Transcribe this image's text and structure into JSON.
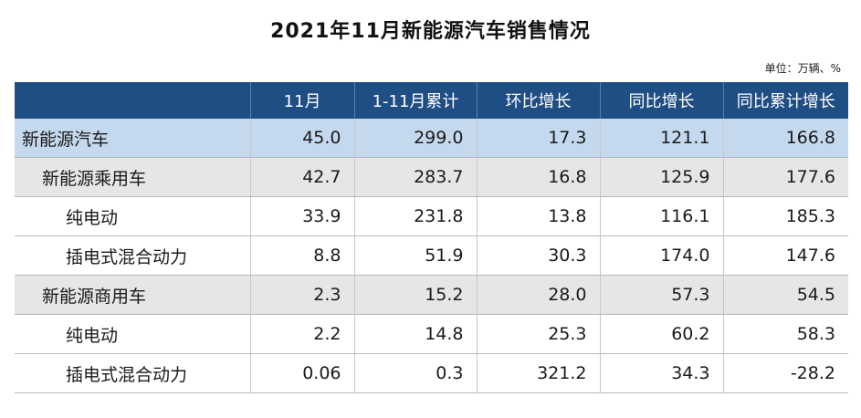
{
  "title": "2021年11月新能源汽车销售情况",
  "unit": "单位：万辆、%",
  "table": {
    "headers": [
      "",
      "11月",
      "1-11月累计",
      "环比增长",
      "同比增长",
      "同比累计增长"
    ],
    "rows": [
      {
        "label": "新能源汽车",
        "cells": [
          "45.0",
          "299.0",
          "17.3",
          "121.1",
          "166.8"
        ]
      },
      {
        "label": "新能源乘用车",
        "cells": [
          "42.7",
          "283.7",
          "16.8",
          "125.9",
          "177.6"
        ]
      },
      {
        "label": "纯电动",
        "cells": [
          "33.9",
          "231.8",
          "13.8",
          "116.1",
          "185.3"
        ]
      },
      {
        "label": "插电式混合动力",
        "cells": [
          "8.8",
          "51.9",
          "30.3",
          "174.0",
          "147.6"
        ]
      },
      {
        "label": "新能源商用车",
        "cells": [
          "2.3",
          "15.2",
          "28.0",
          "57.3",
          "54.5"
        ]
      },
      {
        "label": "纯电动",
        "cells": [
          "2.2",
          "14.8",
          "25.3",
          "60.2",
          "58.3"
        ]
      },
      {
        "label": "插电式混合动力",
        "cells": [
          "0.06",
          "0.3",
          "321.2",
          "34.3",
          "-28.2"
        ]
      }
    ]
  },
  "colors": {
    "header_bg": "#1f4e84",
    "total_row_bg": "#c5d9ee",
    "subtotal_row_bg": "#e6e6e6"
  }
}
